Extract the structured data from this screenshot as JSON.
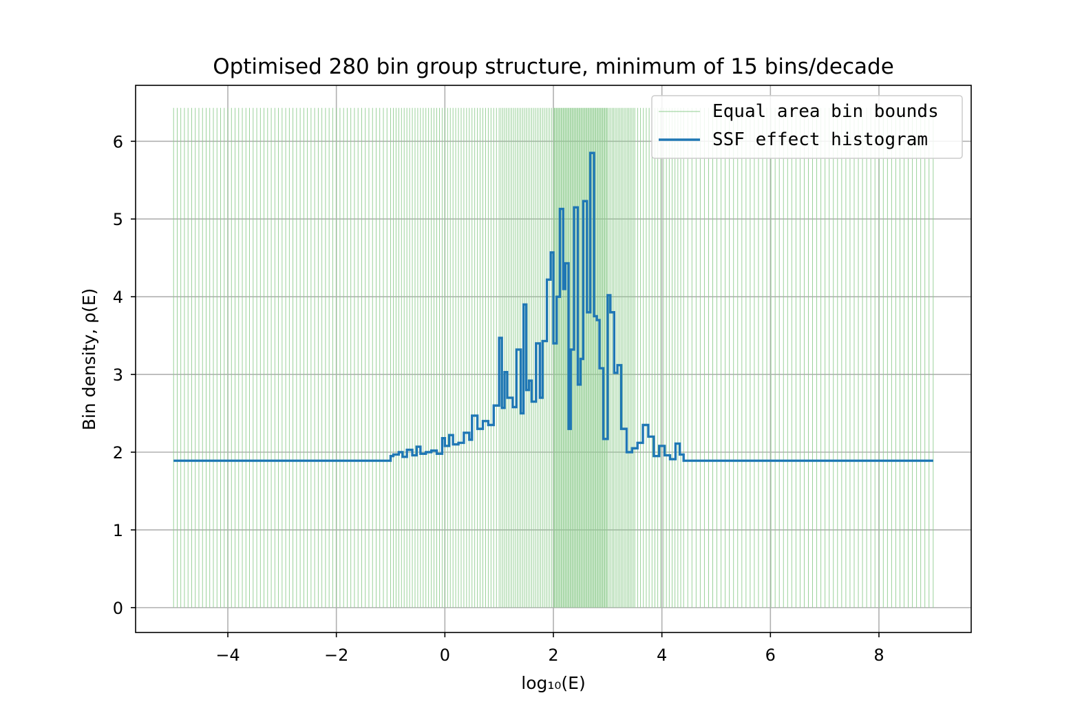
{
  "chart_data": {
    "type": "line",
    "title": "Optimised 280 bin group structure, minimum of 15 bins/decade",
    "xlabel": "log₁₀(E)",
    "ylabel": "Bin density, ρ(E)",
    "xlim": [
      -5.7,
      9.7
    ],
    "ylim": [
      -0.32,
      6.72
    ],
    "xticks": [
      -4,
      -2,
      0,
      2,
      4,
      6,
      8
    ],
    "xtick_labels": [
      "−4",
      "−2",
      "0",
      "2",
      "4",
      "6",
      "8"
    ],
    "yticks": [
      0,
      1,
      2,
      3,
      4,
      5,
      6
    ],
    "ytick_labels": [
      "0",
      "1",
      "2",
      "3",
      "4",
      "5",
      "6"
    ],
    "grid": true,
    "legend_position": "top-right",
    "colors": {
      "bounds": "#8fcc8f",
      "histogram": "#1f77b4",
      "grid": "#b0b0b0"
    },
    "series": [
      {
        "name": "Equal area bin bounds",
        "kind": "vlines",
        "ymin": 0,
        "ymax": 6.43,
        "segments": [
          {
            "from": -5.0,
            "to": -1.0,
            "count": 60
          },
          {
            "from": -1.0,
            "to": 1.0,
            "count": 40
          },
          {
            "from": 1.0,
            "to": 2.0,
            "count": 30
          },
          {
            "from": 2.0,
            "to": 3.0,
            "count": 55
          },
          {
            "from": 3.0,
            "to": 3.5,
            "count": 18
          },
          {
            "from": 3.5,
            "to": 4.4,
            "count": 17
          },
          {
            "from": 4.4,
            "to": 9.0,
            "count": 60
          }
        ]
      },
      {
        "name": "SSF effect histogram",
        "kind": "step",
        "x": [
          -5.0,
          -1.0,
          -0.95,
          -0.85,
          -0.78,
          -0.7,
          -0.6,
          -0.52,
          -0.45,
          -0.35,
          -0.25,
          -0.15,
          -0.05,
          0.0,
          0.08,
          0.15,
          0.25,
          0.35,
          0.45,
          0.5,
          0.6,
          0.7,
          0.8,
          0.9,
          1.0,
          1.05,
          1.1,
          1.15,
          1.25,
          1.32,
          1.4,
          1.45,
          1.5,
          1.55,
          1.6,
          1.68,
          1.75,
          1.8,
          1.88,
          1.95,
          2.0,
          2.06,
          2.12,
          2.18,
          2.22,
          2.28,
          2.32,
          2.38,
          2.45,
          2.5,
          2.55,
          2.62,
          2.68,
          2.75,
          2.8,
          2.85,
          2.92,
          3.0,
          3.05,
          3.12,
          3.18,
          3.25,
          3.35,
          3.45,
          3.55,
          3.65,
          3.75,
          3.85,
          3.95,
          4.05,
          4.15,
          4.25,
          4.33,
          4.4,
          9.0
        ],
        "y": [
          1.89,
          1.95,
          1.97,
          2.0,
          1.94,
          2.03,
          1.96,
          2.07,
          1.98,
          2.0,
          2.02,
          1.98,
          2.18,
          2.08,
          2.22,
          2.1,
          2.12,
          2.25,
          2.16,
          2.47,
          2.3,
          2.4,
          2.35,
          2.6,
          3.47,
          2.57,
          3.03,
          2.7,
          2.58,
          3.32,
          2.5,
          3.9,
          2.8,
          2.92,
          2.65,
          3.4,
          2.7,
          3.43,
          4.22,
          4.57,
          3.4,
          4.0,
          5.13,
          4.1,
          4.43,
          2.3,
          3.32,
          5.15,
          2.87,
          3.2,
          5.23,
          3.8,
          5.85,
          3.75,
          3.7,
          3.08,
          2.17,
          4.02,
          3.8,
          3.02,
          3.12,
          2.3,
          2.0,
          2.05,
          2.12,
          2.35,
          2.2,
          1.95,
          2.08,
          1.96,
          1.91,
          2.11,
          1.97,
          1.89,
          1.89
        ]
      }
    ]
  }
}
